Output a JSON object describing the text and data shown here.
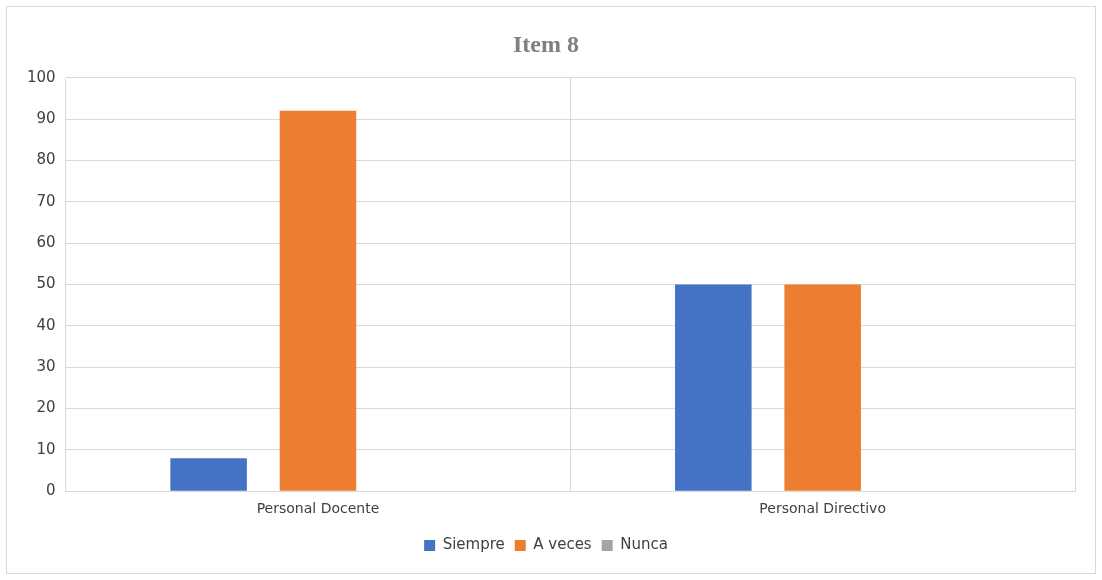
{
  "chart_data": {
    "type": "bar",
    "title": "Item 8",
    "categories": [
      "Personal Docente",
      "Personal Directivo"
    ],
    "series": [
      {
        "name": "Siempre",
        "color": "#4472c4",
        "values": [
          8,
          50
        ]
      },
      {
        "name": "A veces",
        "color": "#ed7d31",
        "values": [
          92,
          50
        ]
      },
      {
        "name": "Nunca",
        "color": "#a5a5a5",
        "values": [
          0,
          0
        ]
      }
    ],
    "ylim": [
      0,
      100
    ],
    "yticks": [
      0,
      10,
      20,
      30,
      40,
      50,
      60,
      70,
      80,
      90,
      100
    ],
    "grid": true,
    "legend": "bottom"
  }
}
